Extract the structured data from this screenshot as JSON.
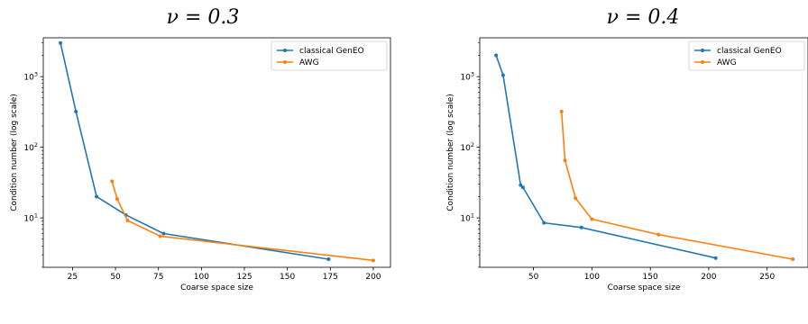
{
  "chart_data": [
    {
      "type": "line",
      "title": "ν = 0.3",
      "xlabel": "Coarse space size",
      "ylabel": "Condition number (log scale)",
      "xlim": [
        8,
        210
      ],
      "ylim_log10": [
        0.3,
        3.55
      ],
      "yscale": "log",
      "xticks": [
        25,
        50,
        75,
        100,
        125,
        150,
        175,
        200
      ],
      "yticks": [
        {
          "value": 10,
          "base": "10",
          "exp": "1"
        },
        {
          "value": 100,
          "base": "10",
          "exp": "2"
        },
        {
          "value": 1000,
          "base": "10",
          "exp": "3"
        }
      ],
      "legend_position": "upper right",
      "series": [
        {
          "name": "classical GenEO",
          "color": "#1f77b4",
          "x": [
            18,
            27,
            39,
            56,
            78,
            174
          ],
          "y": [
            3000,
            320,
            20,
            11,
            6,
            2.6
          ]
        },
        {
          "name": "AWG",
          "color": "#ff7f0e",
          "x": [
            48,
            51,
            57,
            76,
            200
          ],
          "y": [
            33,
            18.5,
            9.2,
            5.5,
            2.5
          ]
        }
      ]
    },
    {
      "type": "line",
      "title": "ν = 0.4",
      "xlabel": "Coarse space size",
      "ylabel": "Condition number (log scale)",
      "xlim": [
        4,
        285
      ],
      "ylim_log10": [
        0.3,
        3.55
      ],
      "yscale": "log",
      "xticks": [
        50,
        100,
        150,
        200,
        250
      ],
      "yticks": [
        {
          "value": 10,
          "base": "10",
          "exp": "1"
        },
        {
          "value": 100,
          "base": "10",
          "exp": "2"
        },
        {
          "value": 1000,
          "base": "10",
          "exp": "3"
        }
      ],
      "legend_position": "upper right",
      "series": [
        {
          "name": "classical GenEO",
          "color": "#1f77b4",
          "x": [
            18,
            24,
            39,
            41,
            59,
            91,
            206
          ],
          "y": [
            2000,
            1050,
            29,
            27,
            8.5,
            7.3,
            2.7
          ]
        },
        {
          "name": "AWG",
          "color": "#ff7f0e",
          "x": [
            74,
            77,
            86,
            100,
            157,
            272
          ],
          "y": [
            320,
            65,
            19,
            9.6,
            5.8,
            2.6
          ]
        }
      ]
    }
  ]
}
